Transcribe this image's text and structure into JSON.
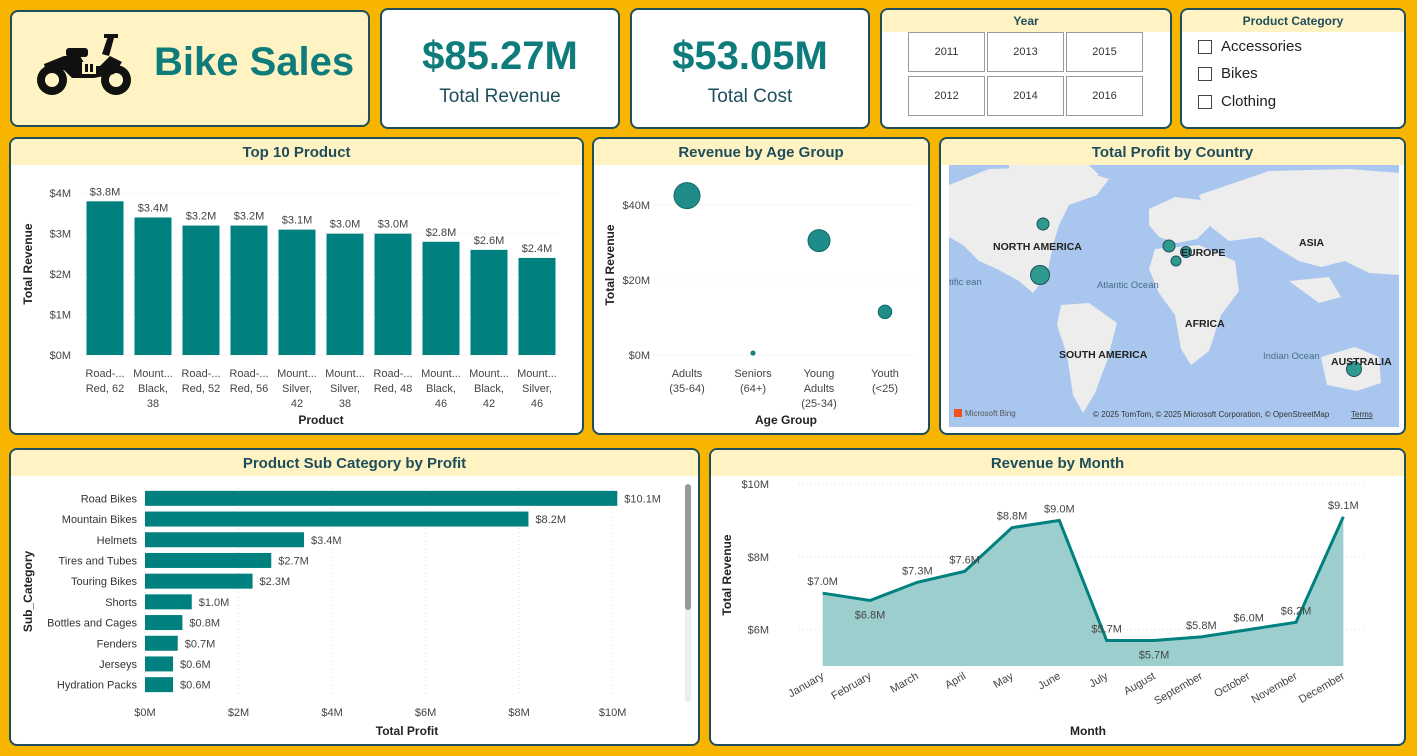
{
  "header": {
    "title": "Bike Sales",
    "icon": "motorcycle-icon"
  },
  "kpis": [
    {
      "value": "$85.27M",
      "label": "Total Revenue"
    },
    {
      "value": "$53.05M",
      "label": "Total Cost"
    }
  ],
  "year_slicer": {
    "title": "Year",
    "years": [
      "2011",
      "2013",
      "2015",
      "2012",
      "2014",
      "2016"
    ]
  },
  "category_slicer": {
    "title": "Product Category",
    "items": [
      "Accessories",
      "Bikes",
      "Clothing"
    ]
  },
  "colors": {
    "accent": "#00807F",
    "accent_light": "#9CCECE",
    "page_bg": "#F7B500",
    "panel_title_bg": "#FFF3C4",
    "border": "#1E4E5C"
  },
  "panels": {
    "top10": "Top 10 Product",
    "age": "Revenue by Age Group",
    "map": "Total Profit by Country",
    "subcat": "Product Sub Category by Profit",
    "month": "Revenue by Month"
  },
  "map": {
    "labels": [
      "NORTH AMERICA",
      "EUROPE",
      "ASIA",
      "AFRICA",
      "SOUTH AMERICA",
      "AUSTRALIA",
      "Atlantic Ocean",
      "Indian Ocean",
      "tific ean"
    ],
    "attribution": "© 2025 TomTom, © 2025 Microsoft Corporation, © OpenStreetMap",
    "terms": "Terms",
    "brand": "Microsoft Bing"
  },
  "chart_data": [
    {
      "type": "bar",
      "title": "Top 10 Product",
      "xlabel": "Product",
      "ylabel": "Total Revenue",
      "ylim": [
        0,
        4.5
      ],
      "unit": "M",
      "yticks": [
        "$0M",
        "$1M",
        "$2M",
        "$3M",
        "$4M"
      ],
      "categories": [
        [
          "Road-...",
          "Red, 62"
        ],
        [
          "Mount...",
          "Black,",
          "38"
        ],
        [
          "Road-...",
          "Red, 52"
        ],
        [
          "Road-...",
          "Red, 56"
        ],
        [
          "Mount...",
          "Silver,",
          "42"
        ],
        [
          "Mount...",
          "Silver,",
          "38"
        ],
        [
          "Road-...",
          "Red, 48"
        ],
        [
          "Mount...",
          "Black,",
          "46"
        ],
        [
          "Mount...",
          "Black,",
          "42"
        ],
        [
          "Mount...",
          "Silver,",
          "46"
        ]
      ],
      "values": [
        3.8,
        3.4,
        3.2,
        3.2,
        3.1,
        3.0,
        3.0,
        2.8,
        2.6,
        2.4
      ],
      "labels": [
        "$3.8M",
        "$3.4M",
        "$3.2M",
        "$3.2M",
        "$3.1M",
        "$3.0M",
        "$3.0M",
        "$2.8M",
        "$2.6M",
        "$2.4M"
      ]
    },
    {
      "type": "scatter",
      "title": "Revenue by Age Group",
      "xlabel": "Age Group",
      "ylabel": "Total Revenue",
      "ylim": [
        0,
        48
      ],
      "yticks": [
        "$0M",
        "$20M",
        "$40M"
      ],
      "categories": [
        [
          "Adults",
          "(35-64)"
        ],
        [
          "Seniors",
          "(64+)"
        ],
        [
          "Young",
          "Adults",
          "(25-34)"
        ],
        [
          "Youth",
          "(<25)"
        ]
      ],
      "values": [
        42.5,
        0.5,
        30.5,
        11.5
      ]
    },
    {
      "type": "bar",
      "orientation": "horizontal",
      "title": "Product Sub Category by Profit",
      "xlabel": "Total Profit",
      "ylabel": "Sub_Category",
      "xlim": [
        0,
        10.5
      ],
      "xticks": [
        "$0M",
        "$2M",
        "$4M",
        "$6M",
        "$8M",
        "$10M"
      ],
      "categories": [
        "Road Bikes",
        "Mountain Bikes",
        "Helmets",
        "Tires and Tubes",
        "Touring Bikes",
        "Shorts",
        "Bottles and Cages",
        "Fenders",
        "Jerseys",
        "Hydration Packs"
      ],
      "values": [
        10.1,
        8.2,
        3.4,
        2.7,
        2.3,
        1.0,
        0.8,
        0.7,
        0.6,
        0.6
      ],
      "labels": [
        "$10.1M",
        "$8.2M",
        "$3.4M",
        "$2.7M",
        "$2.3M",
        "$1.0M",
        "$0.8M",
        "$0.7M",
        "$0.6M",
        "$0.6M"
      ]
    },
    {
      "type": "area",
      "title": "Revenue by Month",
      "xlabel": "Month",
      "ylabel": "Total Revenue",
      "ylim": [
        5,
        10
      ],
      "yticks": [
        "$6M",
        "$8M",
        "$10M"
      ],
      "categories": [
        "January",
        "February",
        "March",
        "April",
        "May",
        "June",
        "July",
        "August",
        "September",
        "October",
        "November",
        "December"
      ],
      "values": [
        7.0,
        6.8,
        7.3,
        7.6,
        8.8,
        9.0,
        5.7,
        5.7,
        5.8,
        6.0,
        6.2,
        9.1
      ],
      "labels": [
        "$7.0M",
        "$6.8M",
        "$7.3M",
        "$7.6M",
        "$8.8M",
        "$9.0M",
        "$5.7M",
        "$5.7M",
        "$5.8M",
        "$6.0M",
        "$6.2M",
        "$9.1M"
      ]
    }
  ]
}
